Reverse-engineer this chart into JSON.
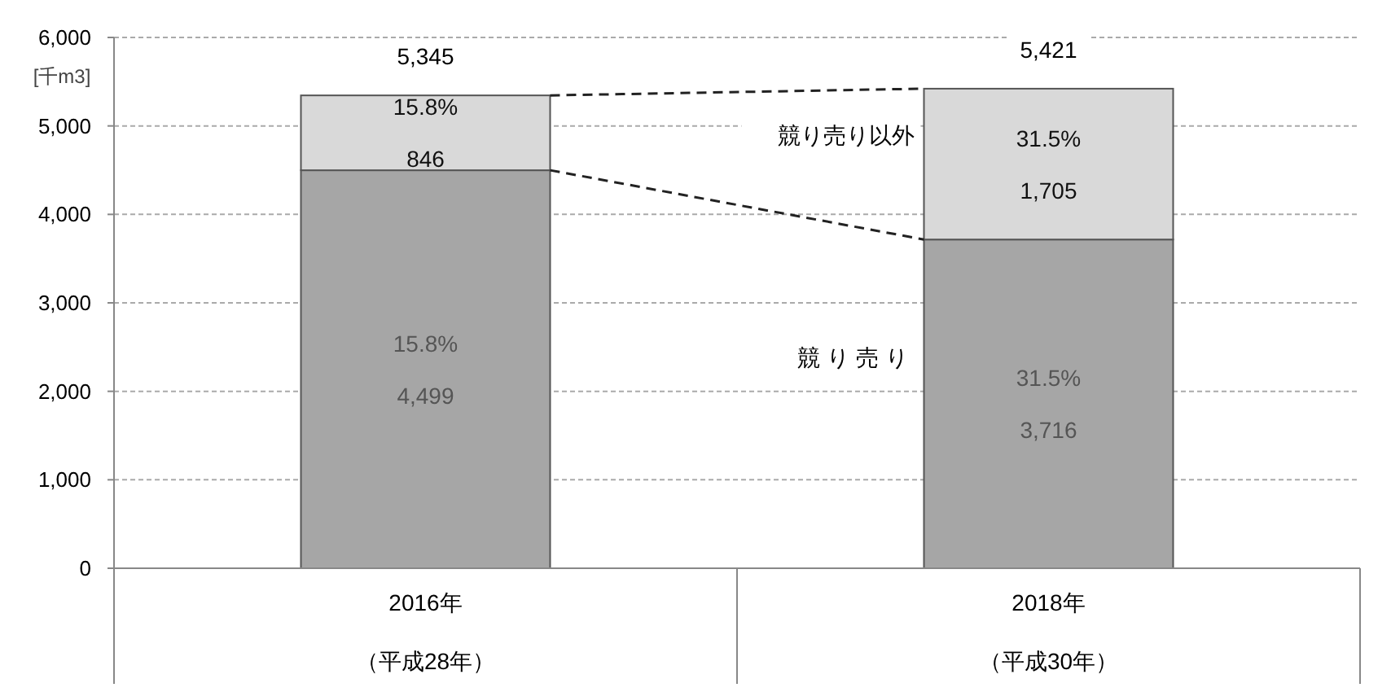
{
  "chart_data": {
    "type": "bar",
    "stacked": true,
    "ylabel": "[千m3]",
    "categories": [
      "2016年（平成28年）",
      "2018年（平成30年）"
    ],
    "series": [
      {
        "name": "競り売り",
        "color": "#a6a6a6",
        "values": [
          4499,
          3716
        ],
        "value_labels": [
          "15.8%\n4,499",
          "31.5%\n3,716"
        ]
      },
      {
        "name": "競り売り以外",
        "color": "#d9d9d9",
        "values": [
          846,
          1705
        ],
        "value_labels": [
          "15.8%\n846",
          "31.5%\n1,705"
        ]
      }
    ],
    "totals": [
      "5,345",
      "5,421"
    ],
    "ylim": [
      0,
      6000
    ],
    "yticks": [
      {
        "value": 0,
        "label": "0"
      },
      {
        "value": 1000,
        "label": "1,000"
      },
      {
        "value": 2000,
        "label": "2,000"
      },
      {
        "value": 3000,
        "label": "3,000"
      },
      {
        "value": 4000,
        "label": "4,000"
      },
      {
        "value": 5000,
        "label": "5,000"
      },
      {
        "value": 6000,
        "label": "6,000"
      }
    ],
    "grid": "y",
    "legend": false
  }
}
